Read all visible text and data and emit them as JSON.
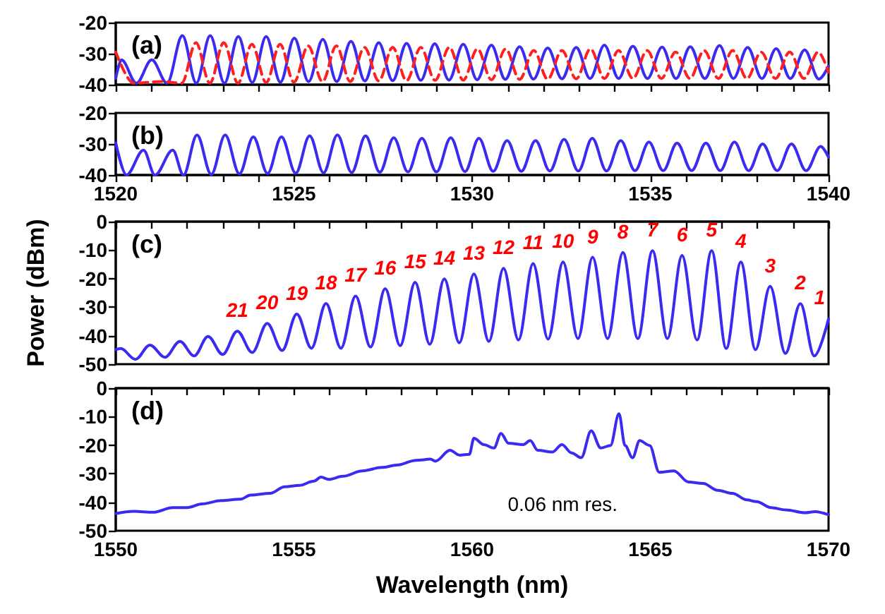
{
  "chart_data": [
    {
      "type": "line",
      "title": "(a)",
      "tick_labels": "y",
      "line_style": "solid",
      "xlim": [
        1520,
        1540
      ],
      "xticks": [
        1520,
        {
          "value": 1521,
          "label": null
        },
        {
          "value": 1522,
          "label": null
        },
        {
          "value": 1523,
          "label": null
        },
        {
          "value": 1524,
          "label": null
        },
        1525,
        {
          "value": 1526,
          "label": null
        },
        {
          "value": 1527,
          "label": null
        },
        {
          "value": 1528,
          "label": null
        },
        {
          "value": 1529,
          "label": null
        },
        1530,
        {
          "value": 1531,
          "label": null
        },
        {
          "value": 1532,
          "label": null
        },
        {
          "value": 1533,
          "label": null
        },
        {
          "value": 1534,
          "label": null
        },
        1535,
        {
          "value": 1536,
          "label": null
        },
        {
          "value": 1537,
          "label": null
        },
        {
          "value": 1538,
          "label": null
        },
        {
          "value": 1539,
          "label": null
        },
        1540
      ],
      "ylim": [
        -40,
        -20
      ],
      "yticks": [
        -40,
        -30,
        -20
      ],
      "series": [
        {
          "color": "#3b2bf0",
          "x": [
            1520,
            1520.16,
            1520.58,
            1521.01,
            1521.44,
            1521.87,
            1522.26,
            1522.65,
            1523.05,
            1523.44,
            1523.83,
            1524.22,
            1524.62,
            1525.01,
            1525.41,
            1525.81,
            1526.2,
            1526.6,
            1526.99,
            1527.38,
            1527.77,
            1528.16,
            1528.56,
            1528.95,
            1529.35,
            1529.75,
            1530.14,
            1530.54,
            1530.93,
            1531.33,
            1531.72,
            1532.12,
            1532.52,
            1532.92,
            1533.31,
            1533.71,
            1534.11,
            1534.51,
            1534.92,
            1535.33,
            1535.72,
            1536.12,
            1536.53,
            1536.94,
            1537.33,
            1537.73,
            1538.13,
            1538.53,
            1538.93,
            1539.33,
            1539.73,
            1540
          ],
          "values": [
            -38,
            -32,
            -39.5,
            -32,
            -39.5,
            -24.2,
            -39.5,
            -24.2,
            -39.5,
            -24.5,
            -39.3,
            -24.5,
            -39.2,
            -25,
            -39,
            -25.4,
            -39,
            -26,
            -38.8,
            -26.5,
            -38.7,
            -26.7,
            -38.6,
            -26.8,
            -38.5,
            -27,
            -38.4,
            -27.3,
            -38.3,
            -27.8,
            -38.2,
            -28.2,
            -38.1,
            -28,
            -38,
            -27.3,
            -38,
            -27.6,
            -38,
            -27.9,
            -38,
            -27.8,
            -38,
            -27.4,
            -38,
            -28,
            -38,
            -28.4,
            -38,
            -28.8,
            -38.2,
            -34
          ]
        },
        {
          "color": "#ff1f1f",
          "line_style": "dashed",
          "x": [
            1520,
            1520.5,
            1521.3,
            1521.85,
            1522.25,
            1522.64,
            1523.03,
            1523.43,
            1523.82,
            1524.22,
            1524.61,
            1525.0,
            1525.4,
            1525.8,
            1526.19,
            1526.58,
            1526.98,
            1527.38,
            1527.77,
            1528.16,
            1528.56,
            1528.96,
            1529.36,
            1529.75,
            1530.15,
            1530.54,
            1530.94,
            1531.33,
            1531.73,
            1532.12,
            1532.52,
            1532.92,
            1533.32,
            1533.71,
            1534.11,
            1534.51,
            1534.91,
            1535.31,
            1535.71,
            1536.11,
            1536.51,
            1536.91,
            1537.31,
            1537.71,
            1538.11,
            1538.51,
            1538.91,
            1539.31,
            1539.71,
            1540
          ],
          "values": [
            -29.5,
            -39.5,
            -39,
            -39.5,
            -26.5,
            -39.5,
            -26.5,
            -39.5,
            -27,
            -39.3,
            -27,
            -39.2,
            -27.5,
            -39,
            -27.5,
            -39,
            -28,
            -38.8,
            -28,
            -38.7,
            -28,
            -38.6,
            -28,
            -38.5,
            -28.5,
            -38.4,
            -28.5,
            -38.3,
            -29,
            -38.2,
            -29,
            -38.1,
            -28.5,
            -38,
            -29,
            -38,
            -29,
            -38,
            -29.5,
            -38,
            -29,
            -38,
            -29,
            -38,
            -29.5,
            -38,
            -29.5,
            -38,
            -29.5,
            -36
          ]
        }
      ]
    },
    {
      "type": "line",
      "title": "(b)",
      "line_style": "solid",
      "xlim": [
        1520,
        1540
      ],
      "xticks": [
        1520,
        {
          "value": 1521,
          "label": null
        },
        {
          "value": 1522,
          "label": null
        },
        {
          "value": 1523,
          "label": null
        },
        {
          "value": 1524,
          "label": null
        },
        1525,
        {
          "value": 1526,
          "label": null
        },
        {
          "value": 1527,
          "label": null
        },
        {
          "value": 1528,
          "label": null
        },
        {
          "value": 1529,
          "label": null
        },
        1530,
        {
          "value": 1531,
          "label": null
        },
        {
          "value": 1532,
          "label": null
        },
        {
          "value": 1533,
          "label": null
        },
        {
          "value": 1534,
          "label": null
        },
        1535,
        {
          "value": 1536,
          "label": null
        },
        {
          "value": 1537,
          "label": null
        },
        {
          "value": 1538,
          "label": null
        },
        {
          "value": 1539,
          "label": null
        },
        1540
      ],
      "ylim": [
        -40,
        -20
      ],
      "yticks": [
        -40,
        -30,
        -20
      ],
      "series": [
        {
          "color": "#3b2bf0",
          "x": [
            1520,
            1520.3,
            1520.78,
            1521.1,
            1521.6,
            1521.9,
            1522.28,
            1522.68,
            1523.07,
            1523.47,
            1523.86,
            1524.26,
            1524.65,
            1525.05,
            1525.44,
            1525.83,
            1526.22,
            1526.62,
            1527.01,
            1527.41,
            1527.8,
            1528.2,
            1528.59,
            1529.0,
            1529.4,
            1529.8,
            1530.19,
            1530.59,
            1530.98,
            1531.38,
            1531.78,
            1532.18,
            1532.58,
            1532.98,
            1533.37,
            1533.77,
            1534.17,
            1534.57,
            1534.96,
            1535.36,
            1535.75,
            1536.16,
            1536.56,
            1536.96,
            1537.36,
            1537.76,
            1538.15,
            1538.56,
            1538.96,
            1539.37,
            1539.78,
            1540
          ],
          "values": [
            -29.6,
            -40,
            -32,
            -40,
            -32,
            -40,
            -27.1,
            -39.8,
            -27.1,
            -39.6,
            -27.7,
            -39.5,
            -27.7,
            -39.4,
            -27.4,
            -39.3,
            -27.1,
            -39.2,
            -27.4,
            -39.1,
            -28,
            -39,
            -28.2,
            -39,
            -28,
            -38.9,
            -28.2,
            -38.8,
            -28.9,
            -38.8,
            -28.9,
            -38.7,
            -28.5,
            -38.7,
            -28.2,
            -38.7,
            -28.9,
            -38.6,
            -29.4,
            -38.6,
            -29.7,
            -38.6,
            -29.7,
            -38.6,
            -29.4,
            -38.6,
            -30,
            -38.6,
            -30,
            -38.6,
            -30.8,
            -34.3
          ]
        }
      ]
    },
    {
      "type": "line",
      "title": "(c)",
      "ylabel": "Power (dBm)",
      "tick_labels": "y",
      "line_style": "solid",
      "xlim": [
        1550,
        1570
      ],
      "xticks": [
        1550,
        {
          "value": 1551,
          "label": null
        },
        {
          "value": 1552,
          "label": null
        },
        {
          "value": 1553,
          "label": null
        },
        {
          "value": 1554,
          "label": null
        },
        1555,
        {
          "value": 1556,
          "label": null
        },
        {
          "value": 1557,
          "label": null
        },
        {
          "value": 1558,
          "label": null
        },
        {
          "value": 1559,
          "label": null
        },
        1560,
        {
          "value": 1561,
          "label": null
        },
        {
          "value": 1562,
          "label": null
        },
        {
          "value": 1563,
          "label": null
        },
        {
          "value": 1564,
          "label": null
        },
        1565,
        {
          "value": 1566,
          "label": null
        },
        {
          "value": 1567,
          "label": null
        },
        {
          "value": 1568,
          "label": null
        },
        {
          "value": 1569,
          "label": null
        },
        1570
      ],
      "ylim": [
        -50,
        0
      ],
      "yticks": [
        -50,
        -40,
        -30,
        -20,
        -10,
        0
      ],
      "series": [
        {
          "color": "#3b2bf0",
          "x": [
            1550,
            1550.14,
            1550.55,
            1550.96,
            1551.38,
            1551.8,
            1552.2,
            1552.59,
            1553.0,
            1553.41,
            1553.83,
            1554.25,
            1554.67,
            1555.08,
            1555.49,
            1555.9,
            1556.32,
            1556.73,
            1557.15,
            1557.56,
            1557.98,
            1558.4,
            1558.81,
            1559.22,
            1559.64,
            1560.05,
            1560.47,
            1560.88,
            1561.3,
            1561.71,
            1562.13,
            1562.55,
            1562.97,
            1563.38,
            1563.8,
            1564.23,
            1564.65,
            1565.06,
            1565.48,
            1565.89,
            1566.31,
            1566.72,
            1567.13,
            1567.54,
            1567.95,
            1568.36,
            1568.79,
            1569.21,
            1569.6,
            1570
          ],
          "values": [
            -44.9,
            -44.5,
            -48.3,
            -43.3,
            -47.6,
            -42,
            -47.1,
            -40.3,
            -46.6,
            -38.4,
            -45.9,
            -35.7,
            -45.2,
            -32.4,
            -44.4,
            -28.7,
            -44.4,
            -26.1,
            -44,
            -23.5,
            -43.5,
            -21.3,
            -43,
            -20.1,
            -42.5,
            -18.4,
            -42,
            -16.4,
            -41.5,
            -14.7,
            -41.2,
            -14.2,
            -41,
            -12.5,
            -41,
            -10.8,
            -41,
            -10.2,
            -41,
            -11.9,
            -41.5,
            -10.2,
            -44.5,
            -14.2,
            -44.9,
            -22.7,
            -46.2,
            -28.8,
            -47.1,
            -34.1
          ]
        }
      ],
      "annotations": [
        {
          "text": "21",
          "x": 1553.41,
          "y": -38.4
        },
        {
          "text": "20",
          "x": 1554.25,
          "y": -35.7
        },
        {
          "text": "19",
          "x": 1555.08,
          "y": -32.4
        },
        {
          "text": "18",
          "x": 1555.9,
          "y": -28.7
        },
        {
          "text": "17",
          "x": 1556.73,
          "y": -26.1
        },
        {
          "text": "16",
          "x": 1557.56,
          "y": -23.5
        },
        {
          "text": "15",
          "x": 1558.4,
          "y": -21.3
        },
        {
          "text": "14",
          "x": 1559.22,
          "y": -20.1
        },
        {
          "text": "13",
          "x": 1560.05,
          "y": -18.4
        },
        {
          "text": "12",
          "x": 1560.88,
          "y": -16.4
        },
        {
          "text": "11",
          "x": 1561.71,
          "y": -14.7
        },
        {
          "text": "10",
          "x": 1562.55,
          "y": -14.2
        },
        {
          "text": "9",
          "x": 1563.38,
          "y": -12.5
        },
        {
          "text": "8",
          "x": 1564.23,
          "y": -10.8
        },
        {
          "text": "7",
          "x": 1565.06,
          "y": -10.2
        },
        {
          "text": "6",
          "x": 1565.89,
          "y": -11.9
        },
        {
          "text": "5",
          "x": 1566.72,
          "y": -10.2
        },
        {
          "text": "4",
          "x": 1567.54,
          "y": -14.2
        },
        {
          "text": "3",
          "x": 1568.36,
          "y": -22.7
        },
        {
          "text": "2",
          "x": 1569.21,
          "y": -28.8
        },
        {
          "text": "1",
          "x": 1569.75,
          "y": -34
        }
      ]
    },
    {
      "type": "line",
      "title": "(d)",
      "xlabel": "Wavelength (nm)",
      "line_style": "solid",
      "xlim": [
        1550,
        1570
      ],
      "xticks": [
        1550,
        {
          "value": 1551,
          "label": null
        },
        {
          "value": 1552,
          "label": null
        },
        {
          "value": 1553,
          "label": null
        },
        {
          "value": 1554,
          "label": null
        },
        1555,
        {
          "value": 1556,
          "label": null
        },
        {
          "value": 1557,
          "label": null
        },
        {
          "value": 1558,
          "label": null
        },
        {
          "value": 1559,
          "label": null
        },
        1560,
        {
          "value": 1561,
          "label": null
        },
        {
          "value": 1562,
          "label": null
        },
        {
          "value": 1563,
          "label": null
        },
        {
          "value": 1564,
          "label": null
        },
        1565,
        {
          "value": 1566,
          "label": null
        },
        {
          "value": 1567,
          "label": null
        },
        {
          "value": 1568,
          "label": null
        },
        {
          "value": 1569,
          "label": null
        },
        1570
      ],
      "ylim": [
        -50,
        0
      ],
      "yticks": [
        -50,
        -40,
        -30,
        -20,
        -10,
        0
      ],
      "series": [
        {
          "color": "#3b2bf0",
          "x": [
            1550.0,
            1550.51,
            1551.05,
            1551.6,
            1552.01,
            1552.42,
            1552.96,
            1553.51,
            1553.78,
            1554.33,
            1554.74,
            1555.15,
            1555.56,
            1555.76,
            1555.97,
            1556.38,
            1556.92,
            1557.47,
            1557.88,
            1558.43,
            1558.83,
            1558.97,
            1559.38,
            1559.65,
            1559.92,
            1560.05,
            1560.33,
            1560.61,
            1560.81,
            1561.02,
            1561.43,
            1561.63,
            1561.84,
            1562.25,
            1562.52,
            1562.79,
            1563.06,
            1563.34,
            1563.61,
            1563.88,
            1564.12,
            1564.29,
            1564.5,
            1564.7,
            1564.98,
            1565.25,
            1565.66,
            1566.07,
            1566.48,
            1566.89,
            1567.3,
            1567.71,
            1567.98,
            1568.39,
            1568.8,
            1569.34,
            1569.62,
            1570.0
          ],
          "values": [
            -44,
            -43.2,
            -43.5,
            -41.9,
            -41.9,
            -40.6,
            -39.4,
            -38.9,
            -37.5,
            -36.9,
            -34.6,
            -34.1,
            -32.6,
            -31.2,
            -32,
            -30.9,
            -29,
            -27.8,
            -27,
            -25.3,
            -24.9,
            -25.6,
            -21.8,
            -23.5,
            -23.2,
            -17.6,
            -19.8,
            -21,
            -15.9,
            -19.3,
            -19.8,
            -18.4,
            -21.8,
            -22.4,
            -19.8,
            -22.7,
            -24.4,
            -15,
            -21,
            -20.1,
            -9,
            -20.1,
            -24.4,
            -18.4,
            -20.1,
            -29.5,
            -29,
            -32.9,
            -33.4,
            -35.8,
            -36.9,
            -39.2,
            -39.8,
            -41.9,
            -42.7,
            -43.7,
            -43.3,
            -44.4
          ]
        }
      ],
      "annotations": [
        "0.06 nm res."
      ]
    }
  ]
}
